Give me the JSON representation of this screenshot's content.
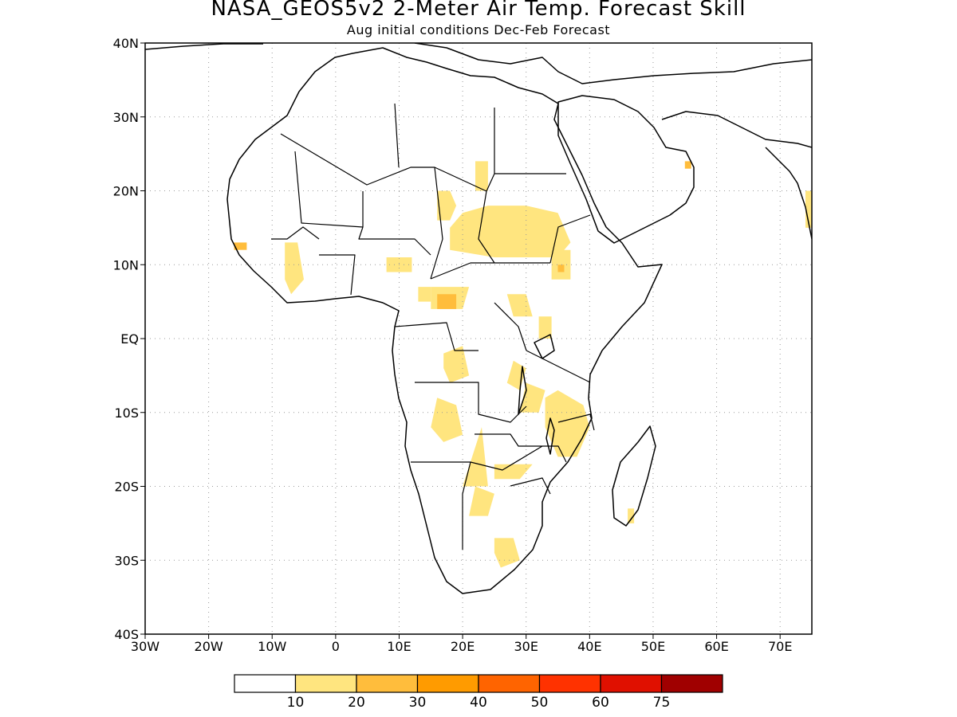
{
  "title": "NASA_GEOS5v2 2-Meter Air Temp. Forecast Skill",
  "subtitle": "Aug initial conditions  Dec-Feb Forecast",
  "map": {
    "lon_range": [
      -30,
      75
    ],
    "lat_range": [
      -40,
      40
    ],
    "lon_ticks": [
      {
        "value": -30,
        "label": "30W"
      },
      {
        "value": -20,
        "label": "20W"
      },
      {
        "value": -10,
        "label": "10W"
      },
      {
        "value": 0,
        "label": "0"
      },
      {
        "value": 10,
        "label": "10E"
      },
      {
        "value": 20,
        "label": "20E"
      },
      {
        "value": 30,
        "label": "30E"
      },
      {
        "value": 40,
        "label": "40E"
      },
      {
        "value": 50,
        "label": "50E"
      },
      {
        "value": 60,
        "label": "60E"
      },
      {
        "value": 70,
        "label": "70E"
      }
    ],
    "lat_ticks": [
      {
        "value": 40,
        "label": "40N"
      },
      {
        "value": 30,
        "label": "30N"
      },
      {
        "value": 20,
        "label": "20N"
      },
      {
        "value": 10,
        "label": "10N"
      },
      {
        "value": 0,
        "label": "EQ"
      },
      {
        "value": -10,
        "label": "10S"
      },
      {
        "value": -20,
        "label": "20S"
      },
      {
        "value": -30,
        "label": "30S"
      },
      {
        "value": -40,
        "label": "40S"
      }
    ],
    "gridlines": "dotted",
    "skill_regions": [
      {
        "level": "10-20",
        "points": [
          [
            16,
            16
          ],
          [
            18,
            16
          ],
          [
            19,
            18
          ],
          [
            18,
            20
          ],
          [
            16,
            20
          ]
        ]
      },
      {
        "level": "10-20",
        "points": [
          [
            18,
            12
          ],
          [
            25,
            11
          ],
          [
            35,
            11
          ],
          [
            37,
            13
          ],
          [
            35,
            17
          ],
          [
            30,
            18
          ],
          [
            24,
            18
          ],
          [
            20,
            17
          ],
          [
            18,
            15
          ]
        ]
      },
      {
        "level": "10-20",
        "points": [
          [
            23,
            -12
          ],
          [
            24,
            -20
          ],
          [
            20,
            -20
          ]
        ]
      },
      {
        "level": "10-20",
        "points": [
          [
            25,
            -17
          ],
          [
            31,
            -17
          ],
          [
            29,
            -19
          ],
          [
            25,
            -19
          ]
        ]
      },
      {
        "level": "10-20",
        "points": [
          [
            35,
            -7
          ],
          [
            39,
            -9
          ],
          [
            40,
            -12
          ],
          [
            38,
            -16
          ],
          [
            35,
            -16
          ],
          [
            33,
            -12
          ],
          [
            33,
            -8
          ]
        ]
      },
      {
        "level": "10-20",
        "points": [
          [
            30,
            -6
          ],
          [
            33,
            -7
          ],
          [
            32,
            -10
          ],
          [
            29,
            -10
          ]
        ]
      },
      {
        "level": "10-20",
        "points": [
          [
            16,
            -8
          ],
          [
            19,
            -9
          ],
          [
            20,
            -13
          ],
          [
            17,
            -14
          ],
          [
            15,
            -12
          ]
        ]
      },
      {
        "level": "10-20",
        "points": [
          [
            22,
            -20
          ],
          [
            25,
            -21
          ],
          [
            24,
            -24
          ],
          [
            21,
            -24
          ]
        ]
      },
      {
        "level": "10-20",
        "points": [
          [
            25,
            -27
          ],
          [
            28,
            -27
          ],
          [
            29,
            -30
          ],
          [
            26,
            -31
          ],
          [
            25,
            -29
          ]
        ]
      },
      {
        "level": "10-20",
        "points": [
          [
            28,
            -3
          ],
          [
            30,
            -4
          ],
          [
            29,
            -7
          ],
          [
            27,
            -6
          ]
        ]
      },
      {
        "level": "10-20",
        "points": [
          [
            17,
            -2
          ],
          [
            20,
            -1
          ],
          [
            21,
            -5
          ],
          [
            18,
            -6
          ],
          [
            17,
            -4
          ]
        ]
      },
      {
        "level": "10-20",
        "points": [
          [
            15,
            7
          ],
          [
            21,
            7
          ],
          [
            20,
            4
          ],
          [
            15,
            4
          ]
        ]
      },
      {
        "level": "10-20",
        "points": [
          [
            27,
            6
          ],
          [
            30,
            6
          ],
          [
            31,
            3
          ],
          [
            28,
            3
          ]
        ]
      },
      {
        "level": "10-20",
        "points": [
          [
            32,
            3
          ],
          [
            34,
            3
          ],
          [
            34,
            0
          ],
          [
            32,
            0
          ]
        ]
      },
      {
        "level": "10-20",
        "points": [
          [
            34,
            12
          ],
          [
            37,
            12
          ],
          [
            37,
            8
          ],
          [
            34,
            8
          ]
        ]
      },
      {
        "level": "10-20",
        "points": [
          [
            8,
            11
          ],
          [
            12,
            11
          ],
          [
            12,
            9
          ],
          [
            8,
            9
          ]
        ]
      },
      {
        "level": "10-20",
        "points": [
          [
            -8,
            13
          ],
          [
            -6,
            13
          ],
          [
            -5,
            8
          ],
          [
            -7,
            6
          ],
          [
            -8,
            8
          ]
        ]
      },
      {
        "level": "10-20",
        "points": [
          [
            13,
            7
          ],
          [
            15,
            7
          ],
          [
            15,
            5
          ],
          [
            13,
            5
          ]
        ]
      },
      {
        "level": "10-20",
        "points": [
          [
            22,
            24
          ],
          [
            24,
            24
          ],
          [
            24,
            20
          ],
          [
            22,
            20
          ]
        ]
      },
      {
        "level": "10-20",
        "points": [
          [
            74,
            20
          ],
          [
            75,
            20
          ],
          [
            75,
            15
          ],
          [
            74,
            15
          ]
        ]
      },
      {
        "level": "10-20",
        "points": [
          [
            46,
            -23
          ],
          [
            47,
            -23
          ],
          [
            47,
            -25
          ],
          [
            46,
            -25
          ]
        ]
      },
      {
        "level": "20-30",
        "points": [
          [
            16,
            6
          ],
          [
            19,
            6
          ],
          [
            19,
            4
          ],
          [
            16,
            4
          ]
        ]
      },
      {
        "level": "20-30",
        "points": [
          [
            -16,
            13
          ],
          [
            -14,
            13
          ],
          [
            -14,
            12
          ],
          [
            -16,
            12
          ]
        ]
      },
      {
        "level": "20-30",
        "points": [
          [
            35,
            10
          ],
          [
            36,
            10
          ],
          [
            36,
            9
          ],
          [
            35,
            9
          ]
        ]
      },
      {
        "level": "20-30",
        "points": [
          [
            55,
            24
          ],
          [
            56,
            24
          ],
          [
            56,
            23
          ],
          [
            55,
            23
          ]
        ]
      }
    ]
  },
  "colorbar": {
    "bins": [
      {
        "color": "#ffffff"
      },
      {
        "color": "#ffe57f"
      },
      {
        "color": "#ffbd3c"
      },
      {
        "color": "#ff9b00"
      },
      {
        "color": "#ff6400"
      },
      {
        "color": "#ff3200"
      },
      {
        "color": "#e01000"
      },
      {
        "color": "#a00000"
      }
    ],
    "labels": [
      "10",
      "20",
      "30",
      "40",
      "50",
      "60",
      "75"
    ]
  }
}
